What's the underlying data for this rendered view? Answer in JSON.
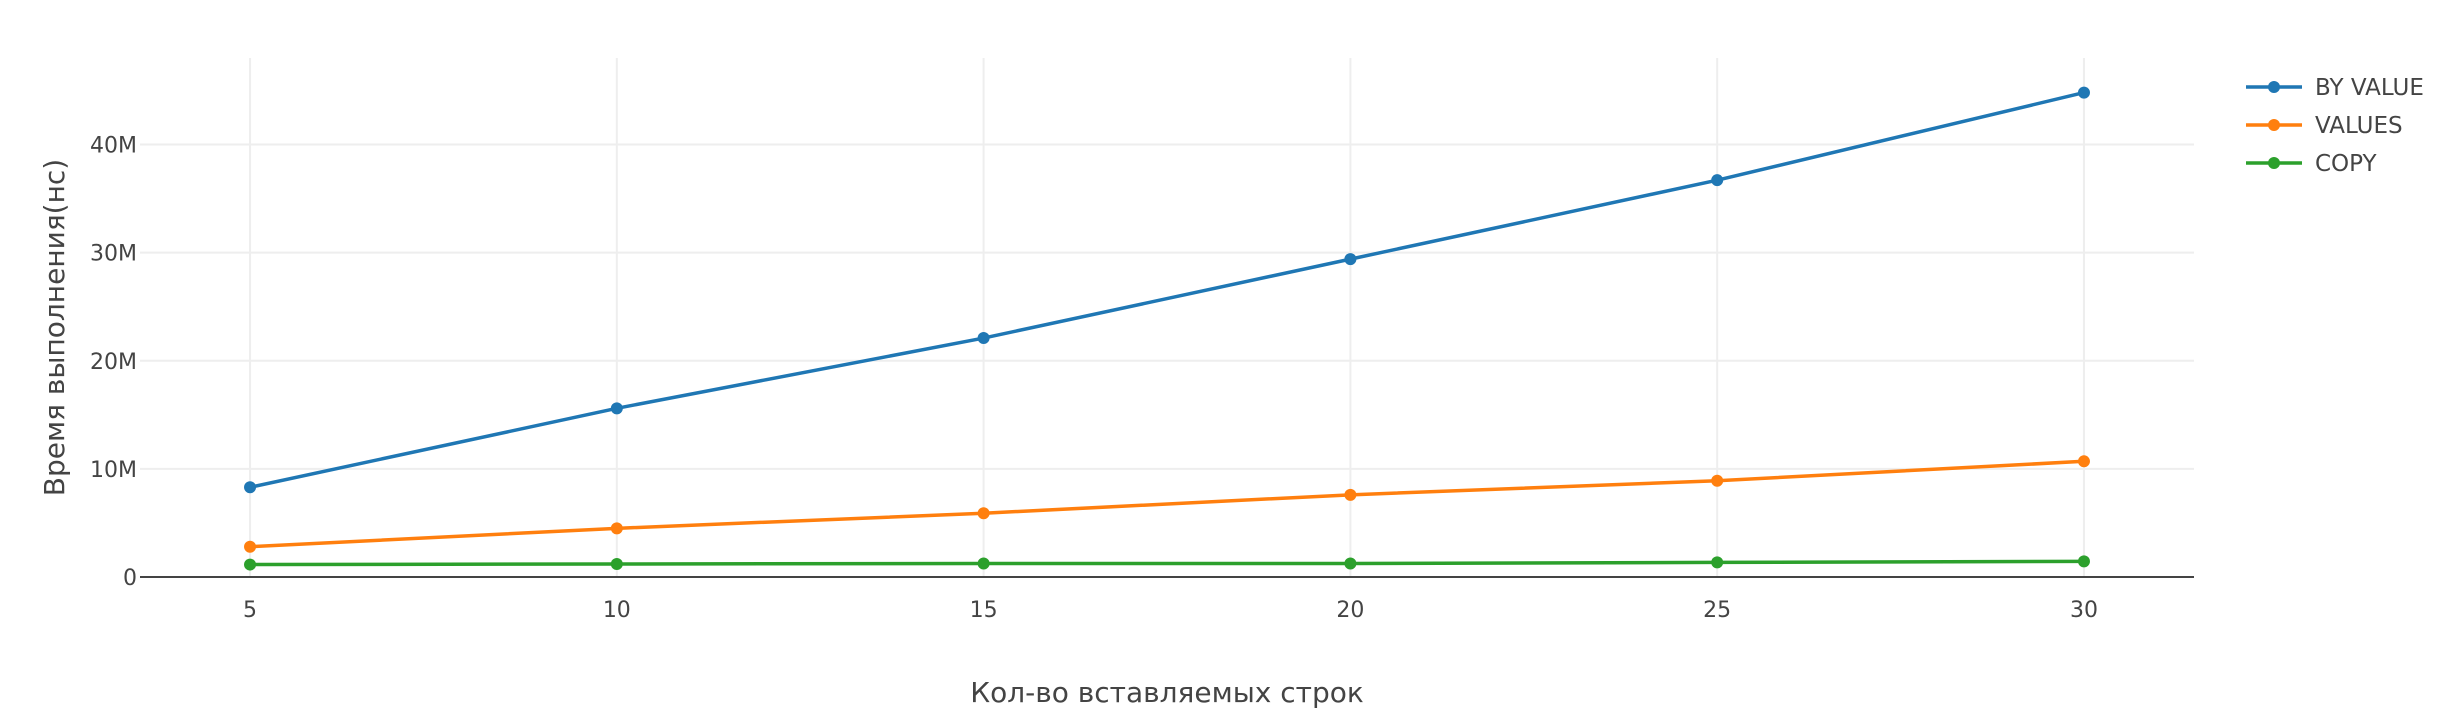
{
  "chart_data": {
    "type": "line",
    "xlabel": "Кол-во вставляемых строк",
    "ylabel": "Время выполнения(нс)",
    "x": [
      5,
      10,
      15,
      20,
      25,
      30
    ],
    "x_ticks": [
      "5",
      "10",
      "15",
      "20",
      "25",
      "30"
    ],
    "xlim": [
      3.5,
      31.5
    ],
    "ylim": [
      0,
      48000000
    ],
    "y_ticks": [
      {
        "value": 0,
        "label": "0"
      },
      {
        "value": 10000000,
        "label": "10M"
      },
      {
        "value": 20000000,
        "label": "20M"
      },
      {
        "value": 30000000,
        "label": "30M"
      },
      {
        "value": 40000000,
        "label": "40M"
      }
    ],
    "grid": true,
    "legend_position": "top-right",
    "series": [
      {
        "name": "BY VALUE",
        "color": "#1f77b4",
        "values": [
          8300000,
          15600000,
          22100000,
          29400000,
          36700000,
          44800000
        ]
      },
      {
        "name": "VALUES",
        "color": "#ff7f0e",
        "values": [
          2800000,
          4500000,
          5900000,
          7600000,
          8900000,
          10700000
        ]
      },
      {
        "name": "COPY",
        "color": "#2ca02c",
        "values": [
          1150000,
          1200000,
          1250000,
          1250000,
          1350000,
          1450000
        ]
      }
    ]
  }
}
